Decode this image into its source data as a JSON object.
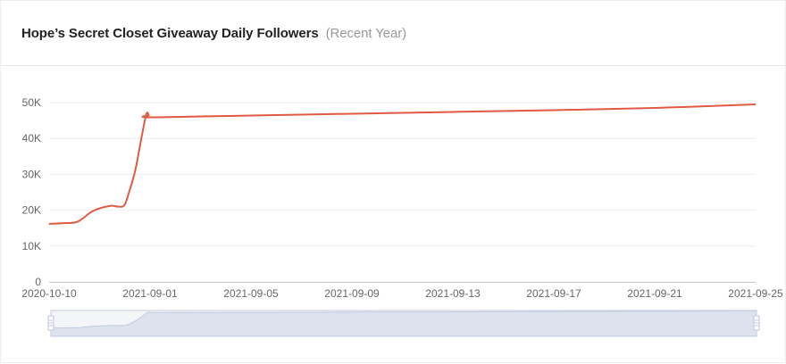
{
  "header": {
    "title": "Hope’s Secret Closet Giveaway Daily Followers",
    "subtitle": "(Recent Year)"
  },
  "colors": {
    "line": "#e05a44",
    "grid": "#eeeeee",
    "axis_text": "#666666",
    "zoom_fill": "#dde3ee",
    "zoom_border": "#c6cde0",
    "handle": "#b9c3db"
  },
  "chart_data": {
    "type": "line",
    "title": "Hope’s Secret Closet Giveaway Daily Followers",
    "x_tick_labels": [
      "2020-10-10",
      "2021-09-01",
      "2021-09-05",
      "2021-09-09",
      "2021-09-13",
      "2021-09-17",
      "2021-09-21",
      "2021-09-25"
    ],
    "y_tick_labels": [
      "0",
      "10K",
      "20K",
      "30K",
      "40K",
      "50K"
    ],
    "ylim": [
      0,
      50000
    ],
    "grid": true,
    "series": [
      {
        "x": [
          "2020-10-10",
          "2020-11-25",
          "2021-01-10",
          "2021-03-01",
          "2021-04-25",
          "2021-05-20",
          "2021-06-10",
          "2021-06-25",
          "2021-07-15",
          "2021-08-05",
          "2021-08-20",
          "2021-08-28",
          "2021-09-01",
          "2021-09-05",
          "2021-09-09",
          "2021-09-13",
          "2021-09-17",
          "2021-09-21",
          "2021-09-25"
        ],
        "values": [
          16200,
          16400,
          16800,
          19800,
          21200,
          21000,
          21400,
          25000,
          31000,
          40500,
          46800,
          46500,
          45900,
          46400,
          46900,
          47400,
          47900,
          48500,
          49500
        ]
      }
    ],
    "zoom_slider": {
      "start": 0,
      "end": 1
    }
  }
}
